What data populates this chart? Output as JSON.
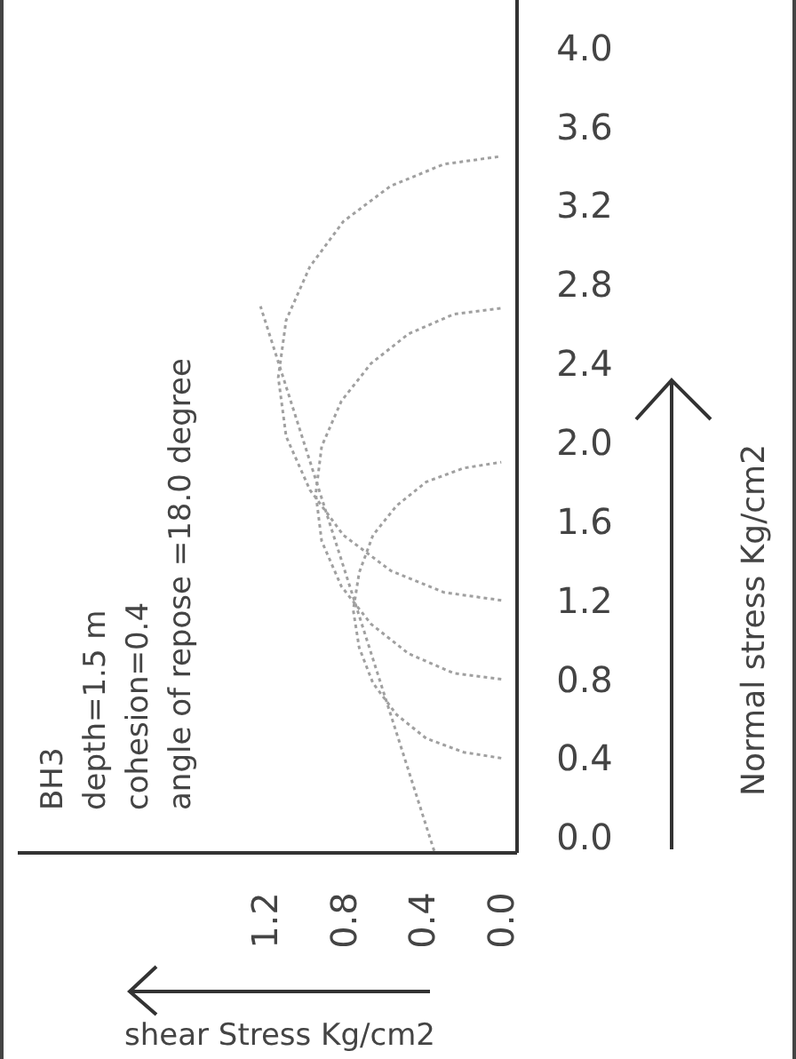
{
  "chart_data": {
    "type": "line",
    "xlabel": "shear Stress Kg/cm2",
    "ylabel": "Normal stress Kg/cm2",
    "annotations": [
      "BH3",
      "depth=1.5 m",
      "cohesion=0.4",
      "angle of repose =18.0 degree"
    ],
    "xlim": [
      2.45,
      -0.08
    ],
    "ylim": [
      -0.08,
      4.26
    ],
    "xticks": [
      {
        "value": 0,
        "label": "0.0"
      },
      {
        "value": 0.4,
        "label": "0.4"
      },
      {
        "value": 0.8,
        "label": "0.8"
      },
      {
        "value": 1.2,
        "label": "1.2"
      }
    ],
    "yticks": [
      {
        "value": 0,
        "label": "0.0"
      },
      {
        "value": 0.4,
        "label": "0.4"
      },
      {
        "value": 0.8,
        "label": "0.8"
      },
      {
        "value": 1.2,
        "label": "1.2"
      },
      {
        "value": 1.6,
        "label": "1.6"
      },
      {
        "value": 2,
        "label": "2.0"
      },
      {
        "value": 2.4,
        "label": "2.4"
      },
      {
        "value": 2.8,
        "label": "2.8"
      },
      {
        "value": 3.2,
        "label": "3.2"
      },
      {
        "value": 3.6,
        "label": "3.6"
      },
      {
        "value": 4,
        "label": "4.0"
      }
    ],
    "grid": false,
    "legend": false,
    "marker": "none",
    "line_style": "dotted",
    "series": [
      {
        "color": "#a0a0a0",
        "x": [
          0,
          0.19,
          0.38,
          0.53,
          0.65,
          0.72,
          0.75,
          0.72,
          0.65,
          0.53,
          0.38,
          0.19,
          0
        ],
        "values": [
          0.4,
          0.43,
          0.5,
          0.62,
          0.78,
          0.96,
          1.15,
          1.34,
          1.53,
          1.68,
          1.8,
          1.87,
          1.9
        ]
      },
      {
        "color": "#a0a0a0",
        "x": [
          0,
          0.24,
          0.47,
          0.66,
          0.81,
          0.91,
          0.94,
          0.91,
          0.81,
          0.66,
          0.47,
          0.24,
          0
        ],
        "values": [
          0.8,
          0.83,
          0.93,
          1.08,
          1.27,
          1.5,
          1.74,
          1.98,
          2.21,
          2.4,
          2.55,
          2.65,
          2.68
        ]
      },
      {
        "color": "#a0a0a0",
        "x": [
          0,
          0.29,
          0.56,
          0.8,
          0.97,
          1.09,
          1.13,
          1.09,
          0.97,
          0.8,
          0.56,
          0.29,
          0
        ],
        "values": [
          1.2,
          1.24,
          1.35,
          1.53,
          1.76,
          2.03,
          2.33,
          2.62,
          2.89,
          3.12,
          3.3,
          3.41,
          3.45
        ]
      },
      {
        "color": "#a0a0a0",
        "x": [
          0.34,
          1.22
        ],
        "values": [
          -0.07,
          2.69
        ]
      }
    ]
  }
}
